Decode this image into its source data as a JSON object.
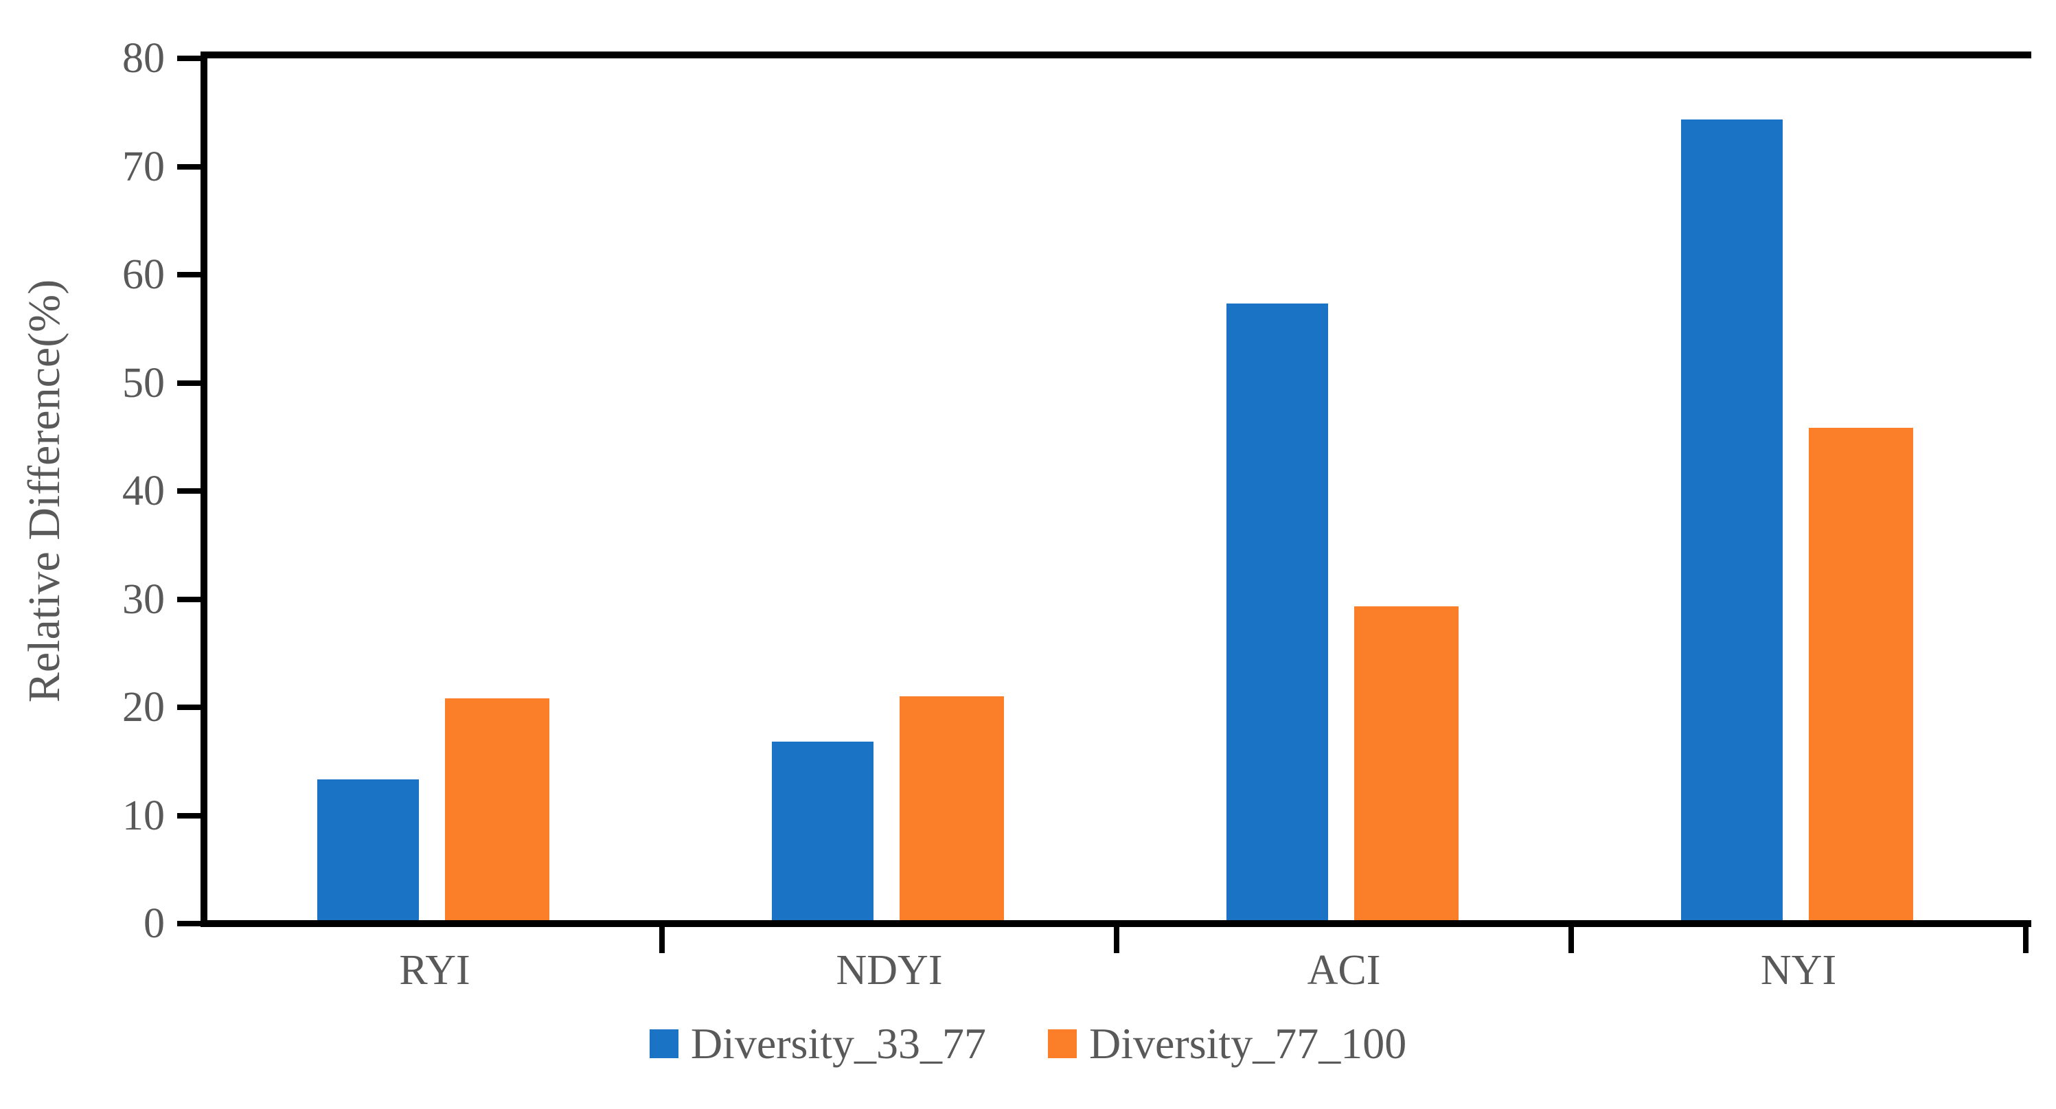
{
  "chart_data": {
    "type": "bar",
    "title": "",
    "xlabel": "",
    "ylabel": "Relative Difference(%)",
    "categories": [
      "RYI",
      "NDYI",
      "ACI",
      "NYI"
    ],
    "series": [
      {
        "name": "Diversity_33_77",
        "color": "#1B73C6",
        "values": [
          13.0,
          16.5,
          57.0,
          74.0
        ]
      },
      {
        "name": "Diversity_77_100",
        "color": "#FB7E28",
        "values": [
          20.5,
          20.7,
          29.0,
          45.5
        ]
      }
    ],
    "ylim": [
      0,
      80
    ],
    "yticks": [
      0,
      10,
      20,
      30,
      40,
      50,
      60,
      70,
      80
    ],
    "grid": false,
    "legend_position": "bottom",
    "text_color": "#595959",
    "axis_color": "#000000"
  }
}
